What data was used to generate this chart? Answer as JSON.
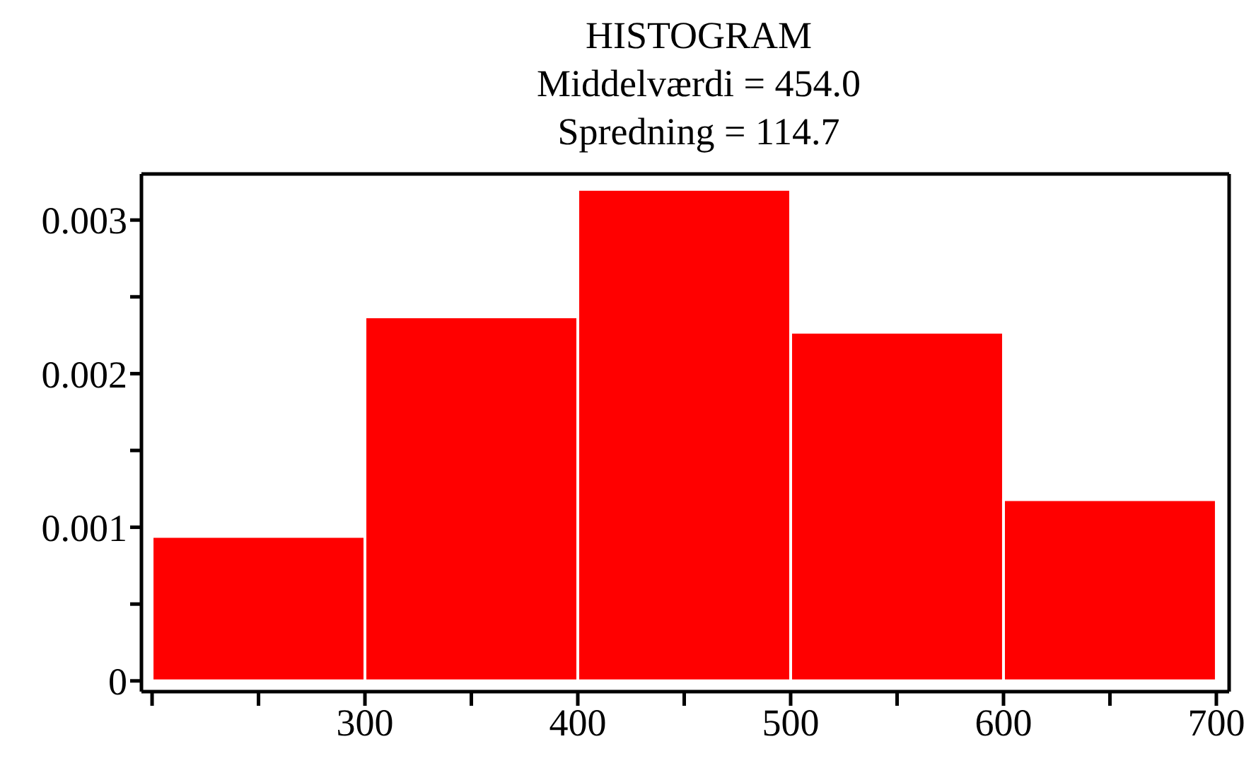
{
  "chart_data": {
    "type": "histogram",
    "title": "HISTOGRAM",
    "subtitle": "Middelværdi = 454.0",
    "annotations": [
      "Spredning = 114.7"
    ],
    "bins": [
      200,
      300,
      400,
      500,
      600,
      700
    ],
    "values": [
      0.00094,
      0.00237,
      0.0032,
      0.00227,
      0.00118
    ],
    "color": "#ff0000",
    "xlim": [
      195,
      706
    ],
    "xticks": [
      {
        "value": 200,
        "label": null
      },
      {
        "value": 250,
        "label": null
      },
      300,
      {
        "value": 350,
        "label": null
      },
      400,
      {
        "value": 450,
        "label": null
      },
      500,
      {
        "value": 550,
        "label": null
      },
      600,
      {
        "value": 650,
        "label": null
      },
      700
    ],
    "ylim": [
      -7e-05,
      0.0033
    ],
    "yticks": [
      0,
      {
        "value": 0.0005,
        "label": null
      },
      0.001,
      {
        "value": 0.0015,
        "label": null
      },
      0.002,
      {
        "value": 0.0025,
        "label": null
      },
      0.003
    ],
    "grid": false
  }
}
